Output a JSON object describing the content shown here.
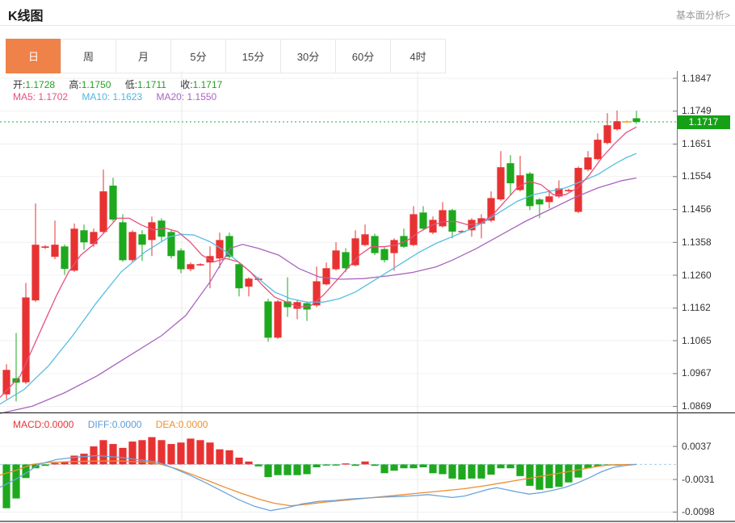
{
  "header": {
    "title": "K线图",
    "link": "基本面分析>"
  },
  "tabs": {
    "items": [
      {
        "label": "日",
        "active": true
      },
      {
        "label": "周",
        "active": false
      },
      {
        "label": "月",
        "active": false
      },
      {
        "label": "5分",
        "active": false
      },
      {
        "label": "15分",
        "active": false
      },
      {
        "label": "30分",
        "active": false
      },
      {
        "label": "60分",
        "active": false
      },
      {
        "label": "4时",
        "active": false
      }
    ]
  },
  "info": {
    "open_label": "开:",
    "open": "1.1728",
    "high_label": "高:",
    "high": "1.1750",
    "low_label": "低:",
    "low": "1.1711",
    "close_label": "收:",
    "close": "1.1717"
  },
  "ma": {
    "ma5_label": "MA5:",
    "ma5": "1.1702",
    "ma10_label": "MA10:",
    "ma10": "1.1623",
    "ma20_label": "MA20:",
    "ma20": "1.1550"
  },
  "macd_info": {
    "macd_label": "MACD:",
    "macd": "0.0000",
    "diff_label": "DIFF:",
    "diff": "0.0000",
    "dea_label": "DEA:",
    "dea": "0.0000"
  },
  "price_badge": "1.1717",
  "colors": {
    "up": "#e83232",
    "down": "#1ea81e",
    "flat_special": "#f5a623",
    "ma5": "#e8507e",
    "ma10": "#55bfdf",
    "ma20": "#a964c0",
    "diff": "#6aa4dc",
    "dea": "#ee8c30",
    "price_line": "#2aa84a",
    "badge": "#16a016",
    "tab_active": "#ef8249",
    "grid": "#f0f0f0",
    "vgrid": "#e8e8e8",
    "axis": "#777",
    "separator": "#333",
    "zero_line": "#a8cce8"
  },
  "chart_data": {
    "type": "candlestick+macd",
    "title": "K线图",
    "main": {
      "y_ticks": [
        "1.1847",
        "1.1749",
        "1.1651",
        "1.1554",
        "1.1456",
        "1.1358",
        "1.1260",
        "1.1162",
        "1.1065",
        "1.0967",
        "1.0869"
      ],
      "y_range": [
        1.0869,
        1.1847
      ],
      "current_price": 1.1717,
      "vgrid_x": [
        225,
        517
      ],
      "candles": [
        [
          1.0905,
          1.0995,
          1.089,
          1.0978
        ],
        [
          1.0953,
          1.1088,
          1.0884,
          1.094
        ],
        [
          1.0941,
          1.1237,
          1.0936,
          1.1194
        ],
        [
          1.1185,
          1.1474,
          1.118,
          1.1351
        ],
        [
          1.1342,
          1.135,
          1.1338,
          1.1346
        ],
        [
          1.1315,
          1.1423,
          1.1308,
          1.1351
        ],
        [
          1.1346,
          1.1352,
          1.1261,
          1.1279
        ],
        [
          1.1274,
          1.1414,
          1.127,
          1.1399
        ],
        [
          1.1394,
          1.1411,
          1.1336,
          1.1358
        ],
        [
          1.1353,
          1.1399,
          1.1344,
          1.1389
        ],
        [
          1.1389,
          1.1575,
          1.1385,
          1.151
        ],
        [
          1.1527,
          1.1551,
          1.142,
          1.1426
        ],
        [
          1.1418,
          1.1442,
          1.13,
          1.1305
        ],
        [
          1.1305,
          1.1394,
          1.1298,
          1.1389
        ],
        [
          1.1382,
          1.1394,
          1.1303,
          1.1351
        ],
        [
          1.1365,
          1.1435,
          1.1317,
          1.1418
        ],
        [
          1.1423,
          1.143,
          1.136,
          1.1375
        ],
        [
          1.1389,
          1.1394,
          1.131,
          1.1317
        ],
        [
          1.1334,
          1.134,
          1.1266,
          1.1278
        ],
        [
          1.1278,
          1.1298,
          1.1272,
          1.1293
        ],
        [
          1.1293,
          1.1296,
          1.1288,
          1.1293
        ],
        [
          1.1298,
          1.1346,
          1.1221,
          1.1317
        ],
        [
          1.131,
          1.1387,
          1.1281,
          1.1365
        ],
        [
          1.1377,
          1.1387,
          1.131,
          1.1315
        ],
        [
          1.1293,
          1.1295,
          1.1197,
          1.1221
        ],
        [
          1.1226,
          1.1254,
          1.1197,
          1.125
        ],
        [
          1.125,
          1.1254,
          1.1244,
          1.125
        ],
        [
          1.1182,
          1.119,
          1.1062,
          1.1074
        ],
        [
          1.1074,
          1.1186,
          1.107,
          1.1182
        ],
        [
          1.1182,
          1.1254,
          1.1136,
          1.1165
        ],
        [
          1.116,
          1.1186,
          1.1129,
          1.118
        ],
        [
          1.1177,
          1.1181,
          1.1124,
          1.1158
        ],
        [
          1.117,
          1.1286,
          1.1165,
          1.1242
        ],
        [
          1.1233,
          1.1298,
          1.123,
          1.1281
        ],
        [
          1.1278,
          1.1358,
          1.1274,
          1.1334
        ],
        [
          1.1329,
          1.1341,
          1.127,
          1.1281
        ],
        [
          1.129,
          1.1394,
          1.1286,
          1.137
        ],
        [
          1.135,
          1.1411,
          1.1346,
          1.1382
        ],
        [
          1.1377,
          1.1384,
          1.132,
          1.1326
        ],
        [
          1.1338,
          1.1344,
          1.1298,
          1.1305
        ],
        [
          1.1326,
          1.137,
          1.1274,
          1.1365
        ],
        [
          1.1377,
          1.1399,
          1.1341,
          1.1345
        ],
        [
          1.135,
          1.1466,
          1.1346,
          1.1442
        ],
        [
          1.1447,
          1.1466,
          1.1394,
          1.1399
        ],
        [
          1.1387,
          1.1435,
          1.1382,
          1.1425
        ],
        [
          1.1406,
          1.1478,
          1.1402,
          1.1454
        ],
        [
          1.1454,
          1.1458,
          1.137,
          1.139
        ],
        [
          1.139,
          1.1394,
          1.1386,
          1.1392
        ],
        [
          1.1394,
          1.143,
          1.1375,
          1.1425
        ],
        [
          1.1414,
          1.1442,
          1.137,
          1.143
        ],
        [
          1.1423,
          1.151,
          1.1418,
          1.149
        ],
        [
          1.1486,
          1.163,
          1.1482,
          1.1582
        ],
        [
          1.1594,
          1.1618,
          1.1498,
          1.1534
        ],
        [
          1.1514,
          1.1616,
          1.151,
          1.1558
        ],
        [
          1.1563,
          1.1568,
          1.1454,
          1.1466
        ],
        [
          1.1486,
          1.149,
          1.143,
          1.1471
        ],
        [
          1.1478,
          1.1514,
          1.1459,
          1.1495
        ],
        [
          1.1495,
          1.1543,
          1.149,
          1.1519
        ],
        [
          1.1512,
          1.1518,
          1.1508,
          1.1514
        ],
        [
          1.1449,
          1.1584,
          1.1445,
          1.158
        ],
        [
          1.1575,
          1.163,
          1.157,
          1.1611
        ],
        [
          1.1606,
          1.1683,
          1.1602,
          1.1664
        ],
        [
          1.1654,
          1.1743,
          1.165,
          1.1707
        ],
        [
          1.1695,
          1.1751,
          1.1691,
          1.1719
        ],
        [
          1.1717,
          1.1722,
          1.1714,
          1.1719,
          "orange"
        ],
        [
          1.1728,
          1.175,
          1.1711,
          1.1717
        ]
      ],
      "ma5": [
        [
          0,
          1.0896
        ],
        [
          25,
          1.096
        ],
        [
          40,
          1.104
        ],
        [
          55,
          1.112
        ],
        [
          70,
          1.12
        ],
        [
          85,
          1.127
        ],
        [
          100,
          1.132
        ],
        [
          115,
          1.135
        ],
        [
          130,
          1.139
        ],
        [
          145,
          1.143
        ],
        [
          160,
          1.143
        ],
        [
          175,
          1.141
        ],
        [
          190,
          1.1395
        ],
        [
          205,
          1.14
        ],
        [
          220,
          1.139
        ],
        [
          235,
          1.136
        ],
        [
          250,
          1.132
        ],
        [
          265,
          1.13
        ],
        [
          280,
          1.131
        ],
        [
          295,
          1.13
        ],
        [
          310,
          1.127
        ],
        [
          325,
          1.123
        ],
        [
          340,
          1.1195
        ],
        [
          355,
          1.118
        ],
        [
          370,
          1.1165
        ],
        [
          385,
          1.117
        ],
        [
          400,
          1.12
        ],
        [
          415,
          1.124
        ],
        [
          430,
          1.128
        ],
        [
          445,
          1.132
        ],
        [
          460,
          1.1345
        ],
        [
          475,
          1.1345
        ],
        [
          490,
          1.135
        ],
        [
          505,
          1.1365
        ],
        [
          520,
          1.139
        ],
        [
          535,
          1.141
        ],
        [
          550,
          1.142
        ],
        [
          565,
          1.142
        ],
        [
          580,
          1.141
        ],
        [
          595,
          1.1415
        ],
        [
          610,
          1.144
        ],
        [
          625,
          1.148
        ],
        [
          640,
          1.152
        ],
        [
          655,
          1.154
        ],
        [
          670,
          1.153
        ],
        [
          685,
          1.15
        ],
        [
          700,
          1.15
        ],
        [
          715,
          1.152
        ],
        [
          730,
          1.156
        ],
        [
          745,
          1.161
        ],
        [
          760,
          1.165
        ],
        [
          775,
          1.1685
        ],
        [
          788,
          1.1702
        ]
      ],
      "ma10": [
        [
          0,
          1.0876
        ],
        [
          30,
          1.092
        ],
        [
          60,
          1.099
        ],
        [
          90,
          1.108
        ],
        [
          120,
          1.118
        ],
        [
          150,
          1.127
        ],
        [
          180,
          1.133
        ],
        [
          210,
          1.1375
        ],
        [
          225,
          1.1382
        ],
        [
          240,
          1.138
        ],
        [
          260,
          1.136
        ],
        [
          280,
          1.133
        ],
        [
          300,
          1.129
        ],
        [
          320,
          1.125
        ],
        [
          340,
          1.121
        ],
        [
          360,
          1.119
        ],
        [
          380,
          1.118
        ],
        [
          400,
          1.118
        ],
        [
          420,
          1.119
        ],
        [
          440,
          1.121
        ],
        [
          460,
          1.124
        ],
        [
          480,
          1.127
        ],
        [
          500,
          1.13
        ],
        [
          520,
          1.133
        ],
        [
          540,
          1.1355
        ],
        [
          560,
          1.1375
        ],
        [
          580,
          1.1395
        ],
        [
          600,
          1.142
        ],
        [
          620,
          1.145
        ],
        [
          640,
          1.148
        ],
        [
          660,
          1.15
        ],
        [
          680,
          1.151
        ],
        [
          700,
          1.152
        ],
        [
          720,
          1.154
        ],
        [
          740,
          1.156
        ],
        [
          760,
          1.159
        ],
        [
          775,
          1.161
        ],
        [
          788,
          1.1623
        ]
      ],
      "ma20": [
        [
          0,
          1.0848
        ],
        [
          40,
          1.087
        ],
        [
          80,
          1.091
        ],
        [
          120,
          1.096
        ],
        [
          160,
          1.102
        ],
        [
          200,
          1.108
        ],
        [
          230,
          1.114
        ],
        [
          260,
          1.124
        ],
        [
          285,
          1.134
        ],
        [
          300,
          1.1352
        ],
        [
          320,
          1.134
        ],
        [
          345,
          1.132
        ],
        [
          370,
          1.128
        ],
        [
          395,
          1.1255
        ],
        [
          420,
          1.1248
        ],
        [
          450,
          1.125
        ],
        [
          480,
          1.1258
        ],
        [
          510,
          1.1268
        ],
        [
          540,
          1.1285
        ],
        [
          560,
          1.1305
        ],
        [
          590,
          1.134
        ],
        [
          620,
          1.138
        ],
        [
          650,
          1.142
        ],
        [
          680,
          1.1455
        ],
        [
          710,
          1.149
        ],
        [
          740,
          1.152
        ],
        [
          770,
          1.1542
        ],
        [
          788,
          1.155
        ]
      ]
    },
    "macd": {
      "y_ticks": [
        "0.0037",
        "-0.0031",
        "-0.0098"
      ],
      "histogram": [
        -0.009,
        -0.007,
        -0.0028,
        -0.0008,
        -0.0003,
        0.0003,
        0.0005,
        0.0018,
        0.0022,
        0.0037,
        0.005,
        0.0042,
        0.0034,
        0.0047,
        0.005,
        0.0056,
        0.005,
        0.0042,
        0.0045,
        0.0053,
        0.005,
        0.0045,
        0.0031,
        0.0029,
        0.0014,
        0.0006,
        -0.0004,
        -0.0026,
        -0.0022,
        -0.0022,
        -0.0022,
        -0.002,
        -0.0006,
        -0.0002,
        -0.0002,
        0.0002,
        -0.0003,
        0.0006,
        -0.0003,
        -0.0018,
        -0.0013,
        -0.0008,
        -0.0008,
        -0.0006,
        -0.0018,
        -0.002,
        -0.0029,
        -0.0031,
        -0.0029,
        -0.0029,
        -0.0021,
        -0.0008,
        -0.0008,
        -0.0024,
        -0.0044,
        -0.0052,
        -0.0049,
        -0.0046,
        -0.0037,
        -0.0027,
        -0.0008,
        -0.0004,
        -0.0002,
        -0.0001,
        0,
        0
      ],
      "diff": [
        [
          0,
          -0.0047
        ],
        [
          20,
          -0.003
        ],
        [
          35,
          -0.0015
        ],
        [
          48,
          0.0
        ],
        [
          70,
          0.001
        ],
        [
          95,
          0.0015
        ],
        [
          120,
          0.0018
        ],
        [
          145,
          0.0015
        ],
        [
          170,
          0.001
        ],
        [
          195,
          0.0005
        ],
        [
          215,
          -0.0008
        ],
        [
          235,
          -0.0022
        ],
        [
          255,
          -0.0038
        ],
        [
          275,
          -0.0055
        ],
        [
          295,
          -0.0072
        ],
        [
          315,
          -0.0086
        ],
        [
          335,
          -0.0095
        ],
        [
          355,
          -0.0089
        ],
        [
          375,
          -0.0081
        ],
        [
          395,
          -0.0076
        ],
        [
          415,
          -0.0074
        ],
        [
          435,
          -0.0071
        ],
        [
          455,
          -0.0069
        ],
        [
          475,
          -0.0067
        ],
        [
          495,
          -0.0066
        ],
        [
          515,
          -0.0064
        ],
        [
          530,
          -0.0062
        ],
        [
          545,
          -0.0065
        ],
        [
          560,
          -0.0068
        ],
        [
          575,
          -0.0065
        ],
        [
          590,
          -0.0058
        ],
        [
          605,
          -0.0051
        ],
        [
          615,
          -0.0048
        ],
        [
          630,
          -0.0053
        ],
        [
          645,
          -0.0058
        ],
        [
          655,
          -0.0061
        ],
        [
          670,
          -0.0058
        ],
        [
          685,
          -0.0053
        ],
        [
          700,
          -0.0047
        ],
        [
          715,
          -0.0038
        ],
        [
          730,
          -0.0027
        ],
        [
          745,
          -0.0015
        ],
        [
          760,
          -0.0006
        ],
        [
          775,
          -0.0002
        ],
        [
          788,
          0.0
        ]
      ],
      "dea": [
        [
          0,
          -0.0022
        ],
        [
          20,
          -0.0012
        ],
        [
          40,
          0.0
        ],
        [
          60,
          0.0004
        ],
        [
          90,
          0.0006
        ],
        [
          120,
          0.0007
        ],
        [
          150,
          0.0007
        ],
        [
          180,
          0.0005
        ],
        [
          200,
          0.0
        ],
        [
          220,
          -0.001
        ],
        [
          240,
          -0.0022
        ],
        [
          260,
          -0.0035
        ],
        [
          280,
          -0.0048
        ],
        [
          300,
          -0.006
        ],
        [
          320,
          -0.0071
        ],
        [
          340,
          -0.008
        ],
        [
          360,
          -0.0085
        ],
        [
          380,
          -0.0082
        ],
        [
          400,
          -0.0078
        ],
        [
          425,
          -0.0074
        ],
        [
          450,
          -0.007
        ],
        [
          475,
          -0.0066
        ],
        [
          500,
          -0.0062
        ],
        [
          525,
          -0.0058
        ],
        [
          550,
          -0.0054
        ],
        [
          575,
          -0.005
        ],
        [
          600,
          -0.0044
        ],
        [
          625,
          -0.0037
        ],
        [
          650,
          -0.003
        ],
        [
          675,
          -0.0023
        ],
        [
          700,
          -0.0016
        ],
        [
          720,
          -0.001
        ],
        [
          740,
          -0.0004
        ],
        [
          755,
          -0.0001
        ],
        [
          788,
          0.0
        ]
      ]
    }
  }
}
